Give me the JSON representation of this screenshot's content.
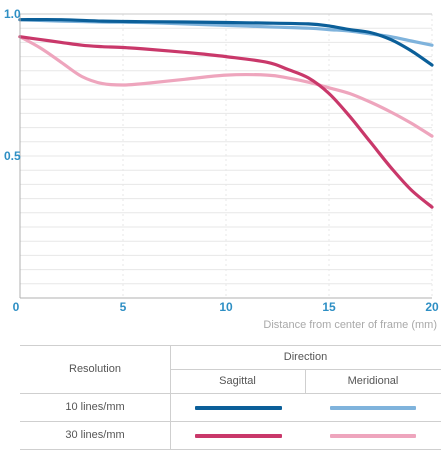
{
  "chart_data": {
    "type": "line",
    "title": "",
    "xlabel": "Distance from center of frame (mm)",
    "ylabel": "",
    "xlim": [
      0,
      20
    ],
    "ylim": [
      0,
      1
    ],
    "x_ticks": [
      0,
      5,
      10,
      15,
      20
    ],
    "y_ticks": [
      0.5,
      1.0
    ],
    "x_tick_labels": [
      "0",
      "5",
      "10",
      "15",
      "20"
    ],
    "y_tick_labels": [
      "0.5",
      "1.0"
    ],
    "grid": true,
    "legend_position": "bottom table",
    "series": [
      {
        "resolution": "10 lines/mm",
        "direction": "Sagittal",
        "color": "#0b5f99",
        "x": [
          0,
          2,
          4,
          6,
          8,
          10,
          12,
          14,
          15,
          16,
          17,
          18,
          19,
          20
        ],
        "y": [
          0.98,
          0.98,
          0.975,
          0.973,
          0.972,
          0.97,
          0.968,
          0.965,
          0.958,
          0.945,
          0.935,
          0.91,
          0.87,
          0.82
        ]
      },
      {
        "resolution": "10 lines/mm",
        "direction": "Meridional",
        "color": "#7fb3dc",
        "x": [
          0,
          2,
          4,
          6,
          8,
          10,
          12,
          14,
          15,
          16,
          17,
          18,
          19,
          20
        ],
        "y": [
          0.98,
          0.975,
          0.972,
          0.97,
          0.965,
          0.96,
          0.955,
          0.95,
          0.945,
          0.94,
          0.93,
          0.92,
          0.905,
          0.89
        ]
      },
      {
        "resolution": "30 lines/mm",
        "direction": "Sagittal",
        "color": "#c9386a",
        "x": [
          0,
          1,
          2,
          3,
          4,
          5,
          6,
          8,
          10,
          12,
          13,
          14,
          15,
          16,
          17,
          18,
          19,
          20
        ],
        "y": [
          0.92,
          0.91,
          0.9,
          0.89,
          0.885,
          0.882,
          0.877,
          0.865,
          0.85,
          0.83,
          0.805,
          0.775,
          0.72,
          0.64,
          0.55,
          0.46,
          0.38,
          0.32
        ]
      },
      {
        "resolution": "30 lines/mm",
        "direction": "Meridional",
        "color": "#eea5bd",
        "x": [
          0,
          1,
          2,
          3,
          4,
          5,
          6,
          8,
          10,
          12,
          13,
          14,
          15,
          16,
          17,
          18,
          19,
          20
        ],
        "y": [
          0.92,
          0.88,
          0.83,
          0.78,
          0.755,
          0.75,
          0.755,
          0.77,
          0.785,
          0.785,
          0.775,
          0.76,
          0.74,
          0.72,
          0.69,
          0.655,
          0.615,
          0.57
        ]
      }
    ]
  },
  "legend": {
    "resolution_header": "Resolution",
    "direction_header": "Direction",
    "sagittal_header": "Sagittal",
    "meridional_header": "Meridional",
    "row_10": "10 lines/mm",
    "row_30": "30 lines/mm"
  },
  "colors": {
    "tick_label": "#2e8fc4",
    "axis_title": "#a9a9a9",
    "grid": "#e7e7e7",
    "axis": "#b0b0b0"
  }
}
